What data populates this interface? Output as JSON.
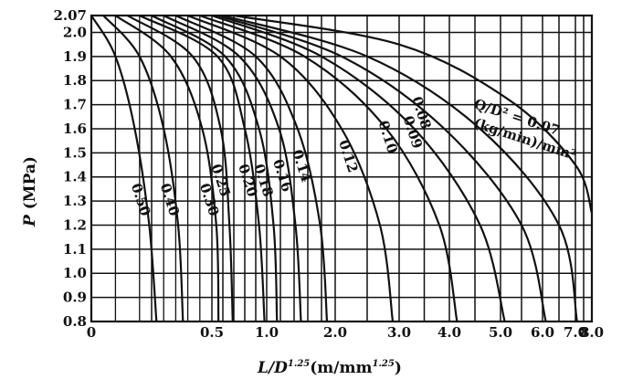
{
  "chart_data": {
    "type": "line",
    "title": "",
    "xlabel": {
      "base": "L/D",
      "exp": "1.25",
      "unit": "(m/mm",
      "unit_exp": "1.25",
      "unit_close": ")"
    },
    "ylabel": {
      "symbol": "P",
      "unit": " (MPa)"
    },
    "x_scale": "piecewise (scale compresses at larger L/D)",
    "x_ticks": [
      {
        "value": 0,
        "label": "0"
      },
      {
        "value": 0.5,
        "label": "0.5"
      },
      {
        "value": 1.0,
        "label": "1.0"
      },
      {
        "value": 2.0,
        "label": "2.0"
      },
      {
        "value": 3.0,
        "label": "3.0"
      },
      {
        "value": 4.0,
        "label": "4.0"
      },
      {
        "value": 5.0,
        "label": "5.0"
      },
      {
        "value": 6.0,
        "label": "6.0"
      },
      {
        "value": 7.0,
        "label": "7.0"
      },
      {
        "value": 8.0,
        "label": "8.0"
      }
    ],
    "y_ticks": [
      {
        "value": 0.8,
        "label": "0.8"
      },
      {
        "value": 0.9,
        "label": "0.9"
      },
      {
        "value": 1.0,
        "label": "1.0"
      },
      {
        "value": 1.1,
        "label": "1.1"
      },
      {
        "value": 1.2,
        "label": "1.2"
      },
      {
        "value": 1.3,
        "label": "1.3"
      },
      {
        "value": 1.4,
        "label": "1.4"
      },
      {
        "value": 1.5,
        "label": "1.5"
      },
      {
        "value": 1.6,
        "label": "1.6"
      },
      {
        "value": 1.7,
        "label": "1.7"
      },
      {
        "value": 1.8,
        "label": "1.8"
      },
      {
        "value": 1.9,
        "label": "1.9"
      },
      {
        "value": 2.0,
        "label": "2.0"
      },
      {
        "value": 2.07,
        "label": "2.07"
      }
    ],
    "ylim": [
      0.8,
      2.07
    ],
    "xlim": [
      0,
      8.0
    ],
    "grid": true,
    "series_parameter_label": {
      "line1": "Q/D² = 0.07",
      "line2": "(kg/min)/mm²"
    },
    "series": [
      {
        "name": "0.50",
        "x": [
          0.0,
          0.1,
          0.18,
          0.24,
          0.27
        ],
        "y": [
          2.07,
          1.9,
          1.6,
          1.2,
          0.8
        ]
      },
      {
        "name": "0.40",
        "x": [
          0.05,
          0.2,
          0.3,
          0.36,
          0.38
        ],
        "y": [
          2.07,
          1.9,
          1.6,
          1.2,
          0.8
        ]
      },
      {
        "name": "0.30",
        "x": [
          0.1,
          0.33,
          0.46,
          0.54,
          0.56
        ],
        "y": [
          2.07,
          1.9,
          1.6,
          1.2,
          0.8
        ]
      },
      {
        "name": "0.25",
        "x": [
          0.15,
          0.42,
          0.58,
          0.66,
          0.69
        ],
        "y": [
          2.07,
          1.9,
          1.6,
          1.2,
          0.8
        ]
      },
      {
        "name": "0.20",
        "x": [
          0.2,
          0.55,
          0.8,
          0.93,
          0.98
        ],
        "y": [
          2.07,
          1.9,
          1.6,
          1.2,
          0.8
        ]
      },
      {
        "name": "0.18",
        "x": [
          0.25,
          0.62,
          0.93,
          1.1,
          1.15
        ],
        "y": [
          2.07,
          1.9,
          1.6,
          1.2,
          0.8
        ]
      },
      {
        "name": "0.16",
        "x": [
          0.3,
          0.75,
          1.18,
          1.42,
          1.5
        ],
        "y": [
          2.07,
          1.9,
          1.6,
          1.2,
          0.8
        ]
      },
      {
        "name": "0.14",
        "x": [
          0.35,
          0.9,
          1.45,
          1.78,
          1.88
        ],
        "y": [
          2.07,
          1.9,
          1.6,
          1.2,
          0.8
        ]
      },
      {
        "name": "0.12",
        "x": [
          0.4,
          1.2,
          2.1,
          2.7,
          2.9
        ],
        "y": [
          2.07,
          1.9,
          1.6,
          1.2,
          0.8
        ]
      },
      {
        "name": "0.10",
        "x": [
          0.45,
          1.55,
          2.8,
          3.8,
          4.15
        ],
        "y": [
          2.07,
          1.9,
          1.6,
          1.2,
          0.8
        ]
      },
      {
        "name": "0.09",
        "x": [
          0.5,
          1.8,
          3.3,
          4.6,
          5.1
        ],
        "y": [
          2.07,
          1.9,
          1.6,
          1.2,
          0.8
        ]
      },
      {
        "name": "0.08",
        "x": [
          0.55,
          2.1,
          3.9,
          5.5,
          6.1
        ],
        "y": [
          2.07,
          1.9,
          1.6,
          1.2,
          0.8
        ]
      },
      {
        "name": "0.07",
        "x": [
          0.6,
          2.5,
          4.6,
          6.5,
          7.1
        ],
        "y": [
          2.07,
          1.9,
          1.6,
          1.2,
          0.8
        ]
      }
    ],
    "outer_curve": {
      "x": [
        0.7,
        3.0,
        5.2,
        7.0,
        8.0
      ],
      "y": [
        2.07,
        1.95,
        1.72,
        1.45,
        1.25
      ]
    }
  }
}
